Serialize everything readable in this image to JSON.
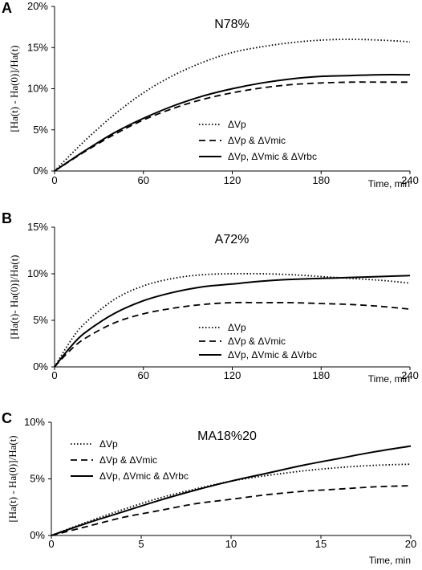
{
  "chart_data": [
    {
      "type": "line",
      "panel_label": "A",
      "title": "N78%",
      "xlabel": "Time, min",
      "ylabel": "[Ha(t) - Ha(0)]/Ha(t)",
      "xlim": [
        0,
        240
      ],
      "ylim": [
        0,
        20
      ],
      "xticks": [
        "0",
        "60",
        "120",
        "180",
        "240"
      ],
      "yticks": [
        "0%",
        "5%",
        "10%",
        "15%",
        "20%"
      ],
      "legend_position": "center-right",
      "x": [
        0,
        20,
        40,
        60,
        80,
        100,
        120,
        140,
        160,
        180,
        200,
        220,
        240
      ],
      "series": [
        {
          "name": "ΔVp",
          "style": "dotted",
          "values": [
            0,
            3.6,
            6.8,
            9.5,
            11.6,
            13.2,
            14.4,
            15.1,
            15.6,
            15.9,
            16.0,
            15.9,
            15.7
          ]
        },
        {
          "name": "ΔVp & ΔVmic",
          "style": "dashed",
          "values": [
            0,
            2.3,
            4.4,
            6.2,
            7.6,
            8.7,
            9.5,
            10.1,
            10.5,
            10.7,
            10.8,
            10.8,
            10.8
          ]
        },
        {
          "name": "ΔVp, ΔVmic & ΔVrbc",
          "style": "solid",
          "values": [
            0,
            2.4,
            4.6,
            6.4,
            7.9,
            9.1,
            10.0,
            10.7,
            11.2,
            11.5,
            11.6,
            11.7,
            11.7
          ]
        }
      ]
    },
    {
      "type": "line",
      "panel_label": "B",
      "title": "A72%",
      "xlabel": "Time, min",
      "ylabel": "[Ha(t)- Ha(0)]/Ha(t)",
      "xlim": [
        0,
        240
      ],
      "ylim": [
        0,
        15
      ],
      "xticks": [
        "0",
        "60",
        "120",
        "180",
        "240"
      ],
      "yticks": [
        "0%",
        "5%",
        "10%",
        "15%"
      ],
      "legend_position": "bottom-right",
      "x": [
        0,
        10,
        20,
        40,
        60,
        80,
        100,
        120,
        140,
        160,
        180,
        200,
        220,
        240
      ],
      "series": [
        {
          "name": "ΔVp",
          "style": "dotted",
          "values": [
            0,
            2.6,
            4.6,
            7.2,
            8.7,
            9.5,
            9.9,
            10.0,
            10.0,
            9.9,
            9.7,
            9.5,
            9.3,
            9.0
          ]
        },
        {
          "name": "ΔVp & ΔVmic",
          "style": "dashed",
          "values": [
            0,
            1.7,
            3.0,
            4.7,
            5.7,
            6.3,
            6.7,
            6.9,
            6.9,
            6.9,
            6.8,
            6.7,
            6.5,
            6.2
          ]
        },
        {
          "name": "ΔVp, ΔVmic & ΔVrbc",
          "style": "solid",
          "values": [
            0,
            2.0,
            3.6,
            5.7,
            7.1,
            8.0,
            8.6,
            8.9,
            9.2,
            9.4,
            9.5,
            9.6,
            9.7,
            9.8
          ]
        }
      ]
    },
    {
      "type": "line",
      "panel_label": "C",
      "title": "MA18%20",
      "xlabel": "Time, min",
      "ylabel": "[Ha(t) - Ha(0)]/Ha(t)",
      "xlim": [
        0,
        20
      ],
      "ylim": [
        0,
        10
      ],
      "xticks": [
        "0",
        "5",
        "10",
        "15",
        "20"
      ],
      "yticks": [
        "0%",
        "5%",
        "10%"
      ],
      "legend_position": "top-left",
      "x": [
        0,
        2,
        4,
        6,
        8,
        10,
        12,
        14,
        16,
        18,
        20
      ],
      "series": [
        {
          "name": "ΔVp",
          "style": "dotted",
          "values": [
            0,
            1.2,
            2.3,
            3.3,
            4.1,
            4.8,
            5.3,
            5.7,
            6.0,
            6.2,
            6.3
          ]
        },
        {
          "name": "ΔVp & ΔVmic",
          "style": "dashed",
          "values": [
            0,
            0.8,
            1.6,
            2.2,
            2.8,
            3.2,
            3.6,
            3.9,
            4.1,
            4.3,
            4.4
          ]
        },
        {
          "name": "ΔVp, ΔVmic & ΔVrbc",
          "style": "solid",
          "values": [
            0,
            1.1,
            2.1,
            3.1,
            4.0,
            4.8,
            5.5,
            6.2,
            6.8,
            7.4,
            7.9
          ]
        }
      ]
    }
  ]
}
